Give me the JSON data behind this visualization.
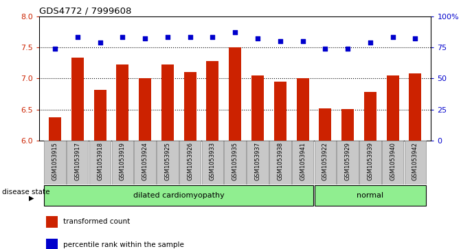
{
  "title": "GDS4772 / 7999608",
  "samples": [
    "GSM1053915",
    "GSM1053917",
    "GSM1053918",
    "GSM1053919",
    "GSM1053924",
    "GSM1053925",
    "GSM1053926",
    "GSM1053933",
    "GSM1053935",
    "GSM1053937",
    "GSM1053938",
    "GSM1053941",
    "GSM1053922",
    "GSM1053929",
    "GSM1053939",
    "GSM1053940",
    "GSM1053942"
  ],
  "bar_values": [
    6.38,
    7.33,
    6.82,
    7.22,
    7.0,
    7.22,
    7.1,
    7.28,
    7.5,
    7.05,
    6.95,
    7.0,
    6.52,
    6.51,
    6.78,
    7.05,
    7.08
  ],
  "percentile_values": [
    74,
    83,
    79,
    83,
    82,
    83,
    83,
    83,
    87,
    82,
    80,
    80,
    74,
    74,
    79,
    83,
    82
  ],
  "disease_groups": [
    {
      "label": "dilated cardiomyopathy",
      "start": 0,
      "end": 11,
      "color": "#90EE90"
    },
    {
      "label": "normal",
      "start": 12,
      "end": 16,
      "color": "#90EE90"
    }
  ],
  "ylim_left": [
    6.0,
    8.0
  ],
  "ylim_right": [
    0,
    100
  ],
  "yticks_left": [
    6.0,
    6.5,
    7.0,
    7.5,
    8.0
  ],
  "yticks_right": [
    0,
    25,
    50,
    75,
    100
  ],
  "bar_color": "#CC2200",
  "dot_color": "#0000CC",
  "tick_area_color": "#C8C8C8",
  "legend_bar_label": "transformed count",
  "legend_dot_label": "percentile rank within the sample",
  "disease_label": "disease state"
}
